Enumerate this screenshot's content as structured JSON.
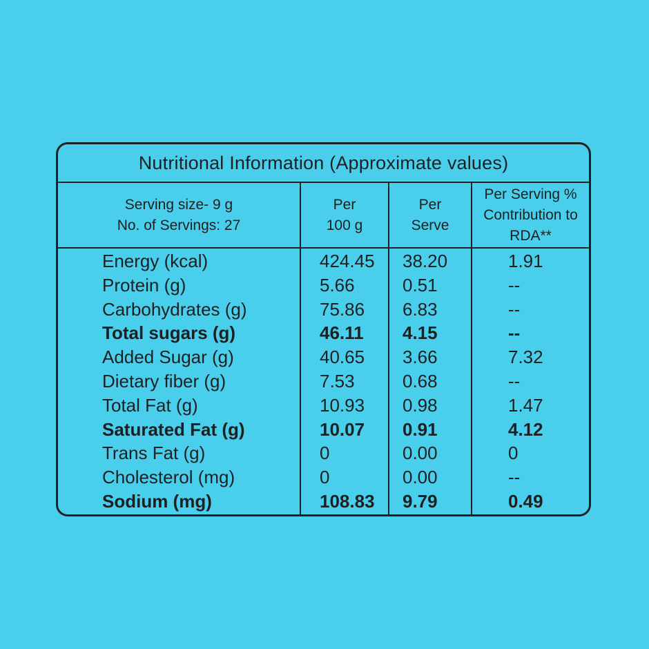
{
  "page": {
    "background_color": "#49cfec",
    "ink_color": "#1c2022"
  },
  "table": {
    "title": "Nutritional Information (Approximate values)",
    "serving_info": {
      "line1": "Serving size- 9 g",
      "line2": "No. of Servings: 27"
    },
    "columns": {
      "per_100g": {
        "line1": "Per",
        "line2": "100 g"
      },
      "per_serve": {
        "line1": "Per",
        "line2": "Serve"
      },
      "rda": {
        "line1": "Per Serving %",
        "line2": "Contribution to",
        "line3": "RDA**"
      }
    },
    "rows": [
      {
        "label": "Energy (kcal)",
        "per_100g": "424.45",
        "per_serve": "38.20",
        "rda": "1.91",
        "bold": false
      },
      {
        "label": "Protein (g)",
        "per_100g": "5.66",
        "per_serve": "0.51",
        "rda": "--",
        "bold": false
      },
      {
        "label": "Carbohydrates (g)",
        "per_100g": "75.86",
        "per_serve": "6.83",
        "rda": "--",
        "bold": false
      },
      {
        "label": "Total sugars (g)",
        "per_100g": "46.11",
        "per_serve": "4.15",
        "rda": "--",
        "bold": true
      },
      {
        "label": "Added Sugar (g)",
        "per_100g": "40.65",
        "per_serve": "3.66",
        "rda": "7.32",
        "bold": false
      },
      {
        "label": "Dietary fiber (g)",
        "per_100g": "7.53",
        "per_serve": "0.68",
        "rda": "--",
        "bold": false
      },
      {
        "label": "Total Fat (g)",
        "per_100g": "10.93",
        "per_serve": "0.98",
        "rda": "1.47",
        "bold": false
      },
      {
        "label": "Saturated Fat (g)",
        "per_100g": "10.07",
        "per_serve": "0.91",
        "rda": "4.12",
        "bold": true
      },
      {
        "label": "Trans Fat (g)",
        "per_100g": "0",
        "per_serve": "0.00",
        "rda": "0",
        "bold": false
      },
      {
        "label": "Cholesterol (mg)",
        "per_100g": "0",
        "per_serve": "0.00",
        "rda": "--",
        "bold": false
      },
      {
        "label": "Sodium (mg)",
        "per_100g": "108.83",
        "per_serve": "9.79",
        "rda": "0.49",
        "bold": true
      }
    ]
  }
}
